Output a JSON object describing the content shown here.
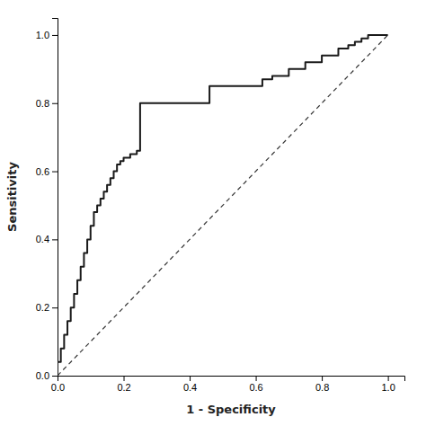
{
  "chart_data": {
    "type": "line",
    "xlabel": "1 - Specificity",
    "ylabel": "Sensitivity",
    "xlim": [
      0.0,
      1.05
    ],
    "ylim": [
      0.0,
      1.05
    ],
    "xticks": [
      {
        "value": 0.0,
        "label": "0.0"
      },
      0.2,
      0.4,
      0.6,
      0.8,
      {
        "value": 1.0,
        "label": "1.0"
      }
    ],
    "yticks": [
      {
        "value": 0.0,
        "label": "0.0"
      },
      0.2,
      0.4,
      0.6,
      0.8,
      {
        "value": 1.0,
        "label": "1.0"
      }
    ],
    "grid": false,
    "series": [
      {
        "color": "#333333",
        "line_style": "dashed",
        "x": [
          0.0,
          1.0
        ],
        "values": [
          0.0,
          1.0
        ]
      },
      {
        "color": "#1a1a1a",
        "line_style": "solid",
        "x": [
          0.0,
          0.0,
          0.01,
          0.01,
          0.02,
          0.02,
          0.03,
          0.03,
          0.04,
          0.04,
          0.05,
          0.05,
          0.06,
          0.06,
          0.07,
          0.07,
          0.08,
          0.08,
          0.09,
          0.09,
          0.1,
          0.1,
          0.11,
          0.11,
          0.12,
          0.12,
          0.13,
          0.13,
          0.14,
          0.14,
          0.15,
          0.15,
          0.16,
          0.16,
          0.17,
          0.17,
          0.18,
          0.18,
          0.19,
          0.19,
          0.2,
          0.2,
          0.22,
          0.22,
          0.24,
          0.24,
          0.25,
          0.25,
          0.26,
          0.26,
          0.28,
          0.28,
          0.3,
          0.3,
          0.4,
          0.4,
          0.42,
          0.42,
          0.44,
          0.44,
          0.46,
          0.46,
          0.5,
          0.5,
          0.52,
          0.52,
          0.55,
          0.55,
          0.58,
          0.58,
          0.62,
          0.62,
          0.65,
          0.65,
          0.7,
          0.7,
          0.75,
          0.75,
          0.8,
          0.8,
          0.85,
          0.85,
          0.88,
          0.88,
          0.9,
          0.9,
          0.92,
          0.92,
          0.94,
          0.94,
          0.96,
          0.96,
          0.98,
          0.98,
          1.0,
          1.0
        ],
        "values": [
          0.0,
          0.04,
          0.04,
          0.08,
          0.08,
          0.12,
          0.12,
          0.16,
          0.16,
          0.2,
          0.2,
          0.24,
          0.24,
          0.28,
          0.28,
          0.32,
          0.32,
          0.36,
          0.36,
          0.4,
          0.4,
          0.44,
          0.44,
          0.48,
          0.48,
          0.5,
          0.5,
          0.52,
          0.52,
          0.54,
          0.54,
          0.56,
          0.56,
          0.58,
          0.58,
          0.6,
          0.6,
          0.62,
          0.62,
          0.63,
          0.63,
          0.64,
          0.64,
          0.65,
          0.65,
          0.66,
          0.66,
          0.8,
          0.8,
          0.8,
          0.8,
          0.8,
          0.8,
          0.8,
          0.8,
          0.8,
          0.8,
          0.8,
          0.8,
          0.8,
          0.8,
          0.85,
          0.85,
          0.85,
          0.85,
          0.85,
          0.85,
          0.85,
          0.85,
          0.85,
          0.85,
          0.87,
          0.87,
          0.88,
          0.88,
          0.9,
          0.9,
          0.92,
          0.92,
          0.94,
          0.94,
          0.96,
          0.96,
          0.97,
          0.97,
          0.98,
          0.98,
          0.99,
          0.99,
          1.0,
          1.0,
          1.0,
          1.0,
          1.0,
          1.0,
          1.0
        ]
      }
    ]
  }
}
